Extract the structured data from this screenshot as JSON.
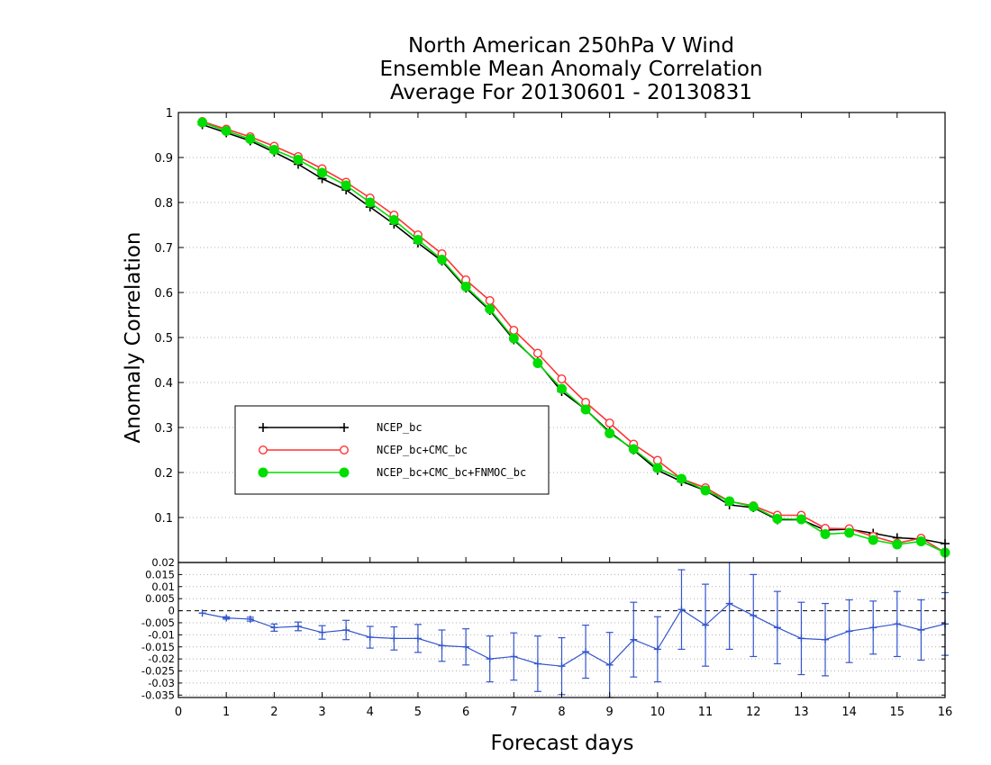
{
  "chart_data": [
    {
      "type": "line",
      "title": [
        "North American 250hPa V Wind",
        "Ensemble Mean Anomaly Correlation",
        "Average For 20130601 - 20130831"
      ],
      "xlabel": "Forecast days",
      "ylabel": "Anomaly Correlation",
      "xlim": [
        0,
        16
      ],
      "ylim": [
        0,
        1
      ],
      "xticks": [
        "0",
        "1",
        "2",
        "3",
        "4",
        "5",
        "6",
        "7",
        "8",
        "9",
        "10",
        "11",
        "12",
        "13",
        "14",
        "15",
        "16"
      ],
      "yticks": [
        "0.1",
        "0.2",
        "0.3",
        "0.4",
        "0.5",
        "0.6",
        "0.7",
        "0.8",
        "0.9",
        "1"
      ],
      "grid": true,
      "legend_position": "middle-left",
      "x": [
        0.5,
        1,
        1.5,
        2,
        2.5,
        3,
        3.5,
        4,
        4.5,
        5,
        5.5,
        6,
        6.5,
        7,
        7.5,
        8,
        8.5,
        9,
        9.5,
        10,
        10.5,
        11,
        11.5,
        12,
        12.5,
        13,
        13.5,
        14,
        14.5,
        15,
        15.5,
        16
      ],
      "series": [
        {
          "name": "NCEP_bc",
          "color": "#000000",
          "marker": "plus",
          "values": [
            0.973,
            0.955,
            0.937,
            0.912,
            0.885,
            0.853,
            0.828,
            0.79,
            0.752,
            0.71,
            0.67,
            0.61,
            0.56,
            0.495,
            0.445,
            0.38,
            0.34,
            0.29,
            0.25,
            0.205,
            0.18,
            0.16,
            0.128,
            0.122,
            0.095,
            0.095,
            0.072,
            0.074,
            0.065,
            0.055,
            0.052,
            0.042
          ]
        },
        {
          "name": "NCEP_bc+CMC_bc",
          "color": "#ff3333",
          "marker": "open-circle",
          "values": [
            0.98,
            0.963,
            0.946,
            0.925,
            0.902,
            0.875,
            0.845,
            0.81,
            0.772,
            0.728,
            0.686,
            0.628,
            0.582,
            0.516,
            0.465,
            0.408,
            0.356,
            0.31,
            0.263,
            0.227,
            0.186,
            0.166,
            0.136,
            0.126,
            0.105,
            0.105,
            0.076,
            0.075,
            0.058,
            0.043,
            0.054,
            0.022
          ]
        },
        {
          "name": "NCEP_bc+CMC_bc+FNMOC_bc",
          "color": "#00dd00",
          "marker": "filled-circle",
          "values": [
            0.978,
            0.959,
            0.941,
            0.917,
            0.895,
            0.866,
            0.838,
            0.8,
            0.761,
            0.717,
            0.673,
            0.613,
            0.563,
            0.498,
            0.443,
            0.386,
            0.34,
            0.287,
            0.252,
            0.21,
            0.186,
            0.16,
            0.136,
            0.124,
            0.097,
            0.096,
            0.063,
            0.066,
            0.05,
            0.04,
            0.047,
            0.022
          ]
        }
      ]
    },
    {
      "type": "line",
      "xlabel": "Forecast days",
      "xlim": [
        0,
        16
      ],
      "ylim": [
        -0.036,
        0.02
      ],
      "yticks": [
        "0.02",
        "0.015",
        "0.01",
        "0.005",
        "0",
        "-0.005",
        "-0.01",
        "-0.015",
        "-0.02",
        "-0.025",
        "-0.03",
        "-0.035"
      ],
      "grid": true,
      "zero_line": true,
      "x": [
        0.5,
        1,
        1.5,
        2,
        2.5,
        3,
        3.5,
        4,
        4.5,
        5,
        5.5,
        6,
        6.5,
        7,
        7.5,
        8,
        8.5,
        9,
        9.5,
        10,
        10.5,
        11,
        11.5,
        12,
        12.5,
        13,
        13.5,
        14,
        14.5,
        15,
        15.5,
        16
      ],
      "series": [
        {
          "color": "#3355cc",
          "marker": "plus",
          "values": [
            -0.001,
            -0.003,
            -0.0035,
            -0.007,
            -0.0065,
            -0.009,
            -0.008,
            -0.011,
            -0.0115,
            -0.0115,
            -0.0145,
            -0.015,
            -0.02,
            -0.019,
            -0.022,
            -0.023,
            -0.017,
            -0.0225,
            -0.012,
            -0.016,
            0.0005,
            -0.006,
            0.003,
            -0.002,
            -0.007,
            -0.0115,
            -0.012,
            -0.0085,
            -0.007,
            -0.0055,
            -0.008,
            -0.0055
          ],
          "error_bars": [
            0,
            0.0005,
            0.0008,
            0.0015,
            0.0018,
            0.0028,
            0.004,
            0.0045,
            0.0048,
            0.0058,
            0.0065,
            0.0075,
            0.0095,
            0.0098,
            0.0115,
            0.0118,
            0.011,
            0.0135,
            0.0155,
            0.0135,
            0.0165,
            0.017,
            0.019,
            0.017,
            0.015,
            0.015,
            0.015,
            0.013,
            0.011,
            0.0135,
            0.0125,
            0.013
          ]
        }
      ]
    }
  ]
}
